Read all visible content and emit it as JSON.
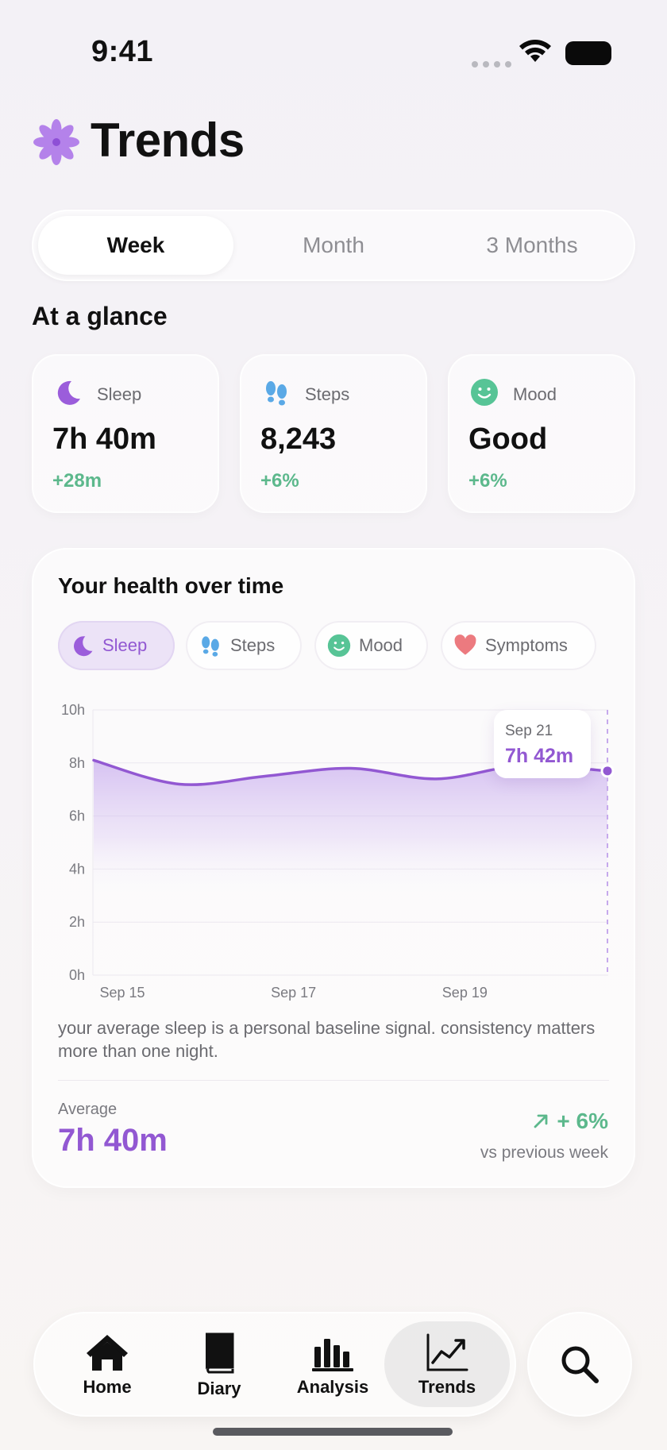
{
  "status_bar": {
    "time": "9:41"
  },
  "header": {
    "title": "Trends"
  },
  "range_tabs": [
    {
      "label": "Week",
      "active": true
    },
    {
      "label": "Month",
      "active": false
    },
    {
      "label": "3 Months",
      "active": false
    }
  ],
  "glance": {
    "title": "At a glance",
    "cards": [
      {
        "icon": "moon-icon",
        "label": "Sleep",
        "value": "7h 40m",
        "change": "+28m"
      },
      {
        "icon": "footprints-icon",
        "label": "Steps",
        "value": "8,243",
        "change": "+6%"
      },
      {
        "icon": "smiley-icon",
        "label": "Mood",
        "value": "Good",
        "change": "+6%"
      }
    ]
  },
  "health": {
    "title": "Your health over time",
    "chips": [
      {
        "icon": "moon-icon",
        "label": "Sleep",
        "active": true
      },
      {
        "icon": "footprints-icon",
        "label": "Steps",
        "active": false
      },
      {
        "icon": "smiley-icon",
        "label": "Mood",
        "active": false
      },
      {
        "icon": "heart-icon",
        "label": "Symptoms",
        "active": false
      }
    ],
    "tooltip": {
      "date": "Sep 21",
      "value": "7h 42m"
    },
    "note": "your average sleep is a personal baseline signal. consistency matters more than one night.",
    "average_label": "Average",
    "average_value": "7h 40m",
    "comparison_value": "+ 6%",
    "comparison_label": "vs previous week"
  },
  "chart_data": {
    "type": "area",
    "x": [
      "Sep 15",
      "Sep 16",
      "Sep 17",
      "Sep 18",
      "Sep 19",
      "Sep 20",
      "Sep 21"
    ],
    "y_hours": [
      8.1,
      7.2,
      7.5,
      7.8,
      7.4,
      7.9,
      7.7
    ],
    "series": [
      {
        "values": [
          8.1,
          7.2,
          7.5,
          7.8,
          7.4,
          7.9,
          7.7
        ]
      }
    ],
    "x_tick_labels": [
      "Sep 15",
      "Sep 17",
      "Sep 19"
    ],
    "y_tick_labels": [
      "0h",
      "2h",
      "4h",
      "6h",
      "8h",
      "10h"
    ],
    "ylim": [
      0,
      10
    ],
    "grid": true,
    "highlight": {
      "x": "Sep 21",
      "label": "7h 42m"
    },
    "color": "#9258d2"
  },
  "tabbar": {
    "items": [
      {
        "icon": "home-icon",
        "label": "Home",
        "active": false
      },
      {
        "icon": "book-icon",
        "label": "Diary",
        "active": false
      },
      {
        "icon": "bar-chart-icon",
        "label": "Analysis",
        "active": false
      },
      {
        "icon": "trend-chart-icon",
        "label": "Trends",
        "active": true
      }
    ],
    "search_icon": "search-icon"
  },
  "colors": {
    "accent": "#9258d2",
    "positive": "#5cb88c",
    "steps_blue": "#5aa9e6",
    "mood_green": "#57c496",
    "heart_red": "#ec7a7f"
  }
}
